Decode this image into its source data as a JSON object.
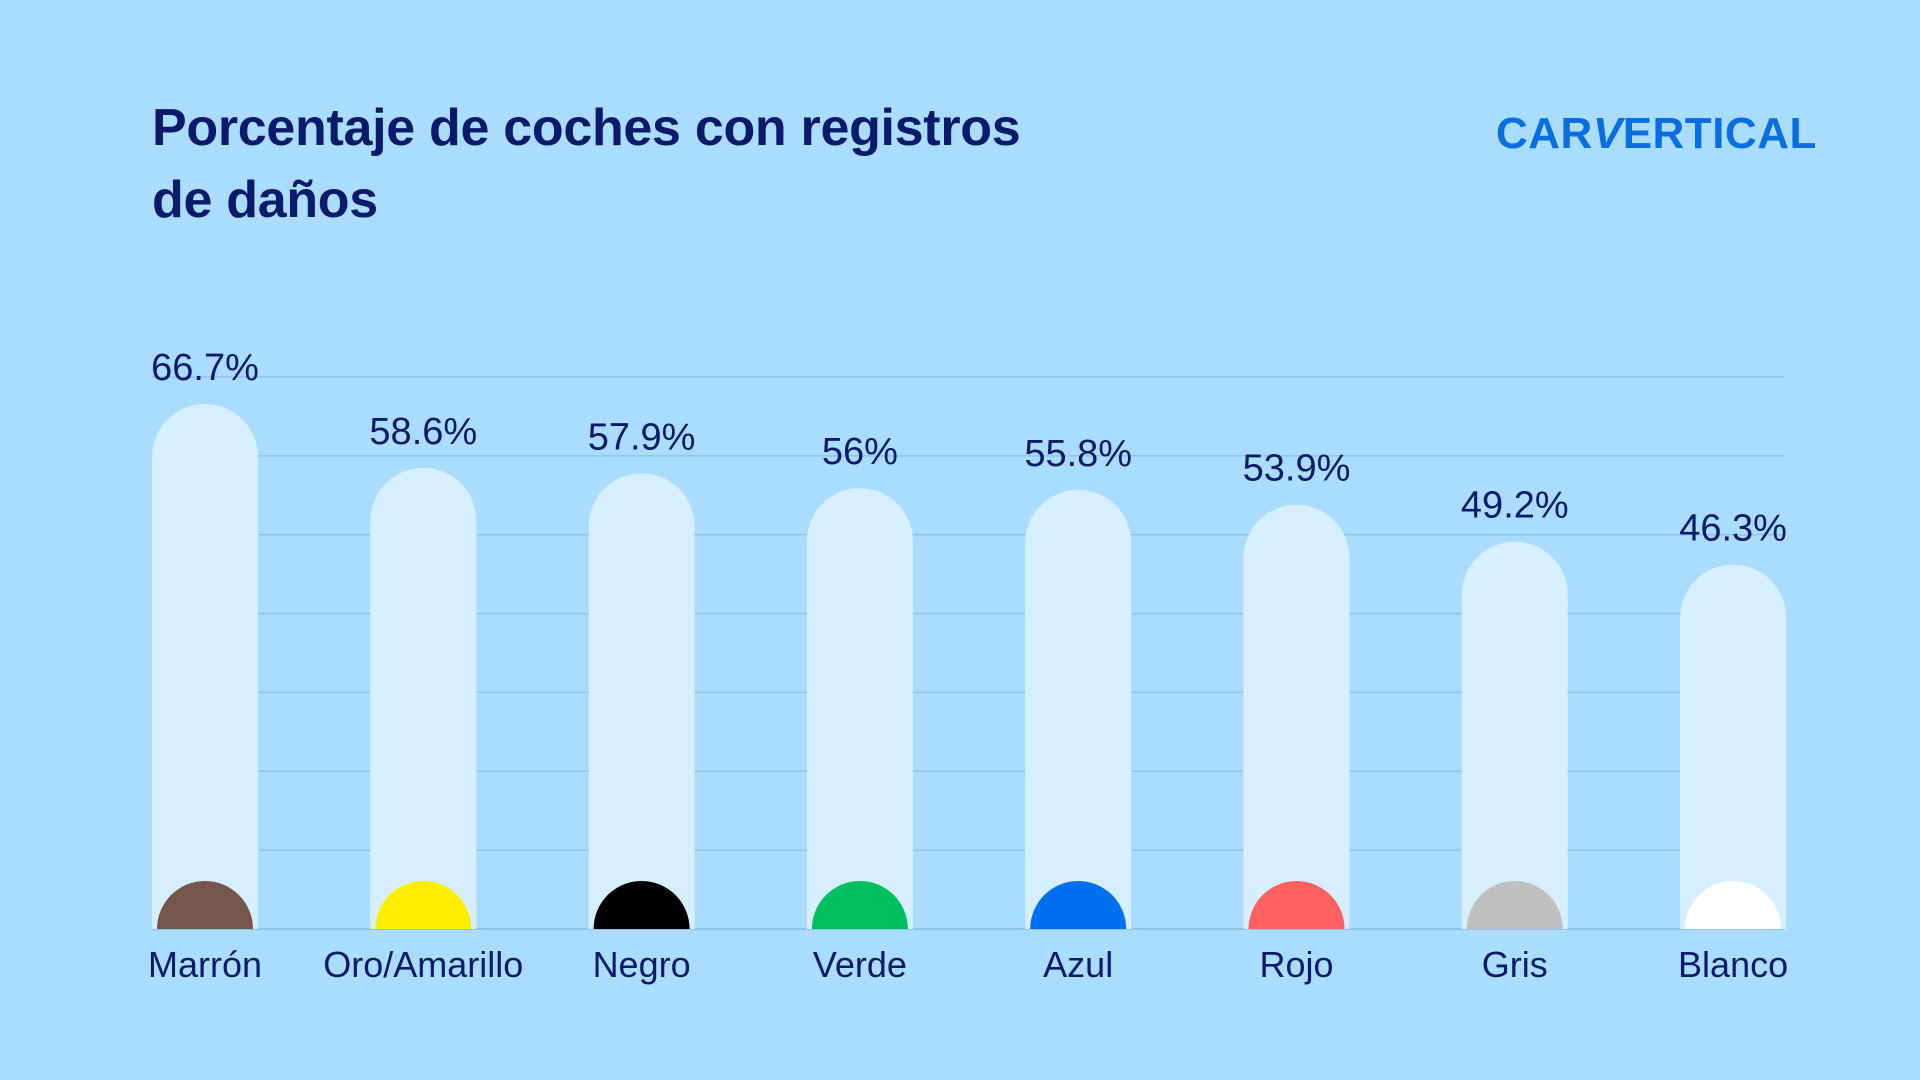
{
  "header": {
    "title": "Porcentaje de coches con registros de daños",
    "logo_text": "CARVERTICAL"
  },
  "colors": {
    "background": "#aadcfd",
    "bar": "#d6efff",
    "gridline": "#8fc4ea",
    "text": "#0c1a6b",
    "logo": "#0a6ee3"
  },
  "chart_data": {
    "type": "bar",
    "title": "Porcentaje de coches con registros de daños",
    "xlabel": "",
    "ylabel": "",
    "ylim": [
      0,
      70
    ],
    "grid": true,
    "categories": [
      "Marrón",
      "Oro/Amarillo",
      "Negro",
      "Verde",
      "Azul",
      "Rojo",
      "Gris",
      "Blanco"
    ],
    "values": [
      66.7,
      58.6,
      57.9,
      56,
      55.8,
      53.9,
      49.2,
      46.3
    ],
    "value_labels": [
      "66.7%",
      "58.6%",
      "57.9%",
      "56%",
      "55.8%",
      "53.9%",
      "49.2%",
      "46.3%"
    ],
    "marker_colors": [
      "#75564a",
      "#ffee00",
      "#000000",
      "#00c060",
      "#0070f0",
      "#ff6060",
      "#c0c0c0",
      "#ffffff"
    ]
  }
}
